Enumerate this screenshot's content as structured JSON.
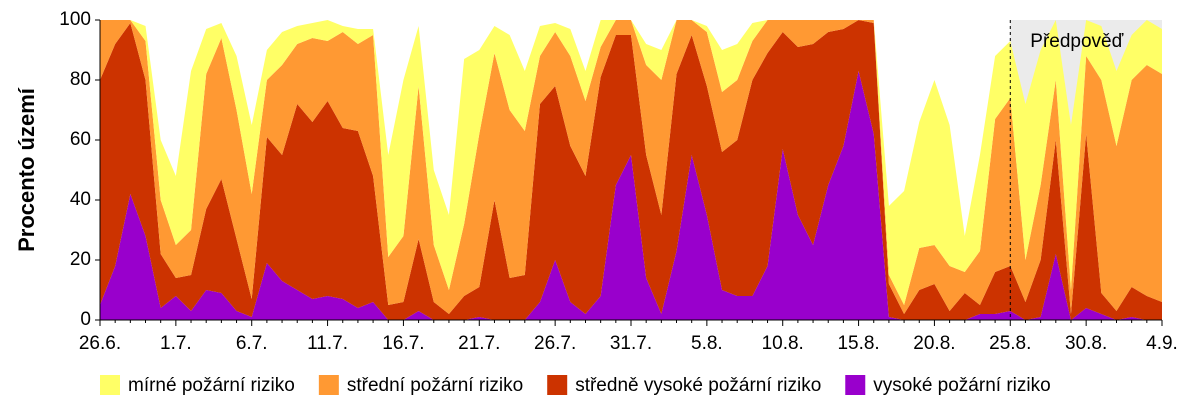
{
  "chart_data": {
    "type": "stacked_area",
    "y_label": "Procento území",
    "categories": [
      "26.6.",
      null,
      null,
      null,
      null,
      "1.7.",
      null,
      null,
      null,
      null,
      "6.7.",
      null,
      null,
      null,
      null,
      "11.7.",
      null,
      null,
      null,
      null,
      "16.7.",
      null,
      null,
      null,
      null,
      "21.7.",
      null,
      null,
      null,
      null,
      "26.7.",
      null,
      null,
      null,
      null,
      "31.7.",
      null,
      null,
      null,
      null,
      "5.8.",
      null,
      null,
      null,
      null,
      "10.8.",
      null,
      null,
      null,
      null,
      "15.8.",
      null,
      null,
      null,
      null,
      "20.8.",
      null,
      null,
      null,
      null,
      "25.8.",
      null,
      null,
      null,
      null,
      "30.8.",
      null,
      null,
      null,
      null,
      "4.9."
    ],
    "series": [
      {
        "name": "vysoké požární riziko",
        "color": "#9900cc",
        "values": [
          5,
          18,
          42,
          28,
          4,
          8,
          3,
          10,
          9,
          3,
          1,
          19,
          13,
          10,
          7,
          8,
          7,
          4,
          6,
          0,
          0,
          3,
          0,
          0,
          0,
          1,
          0,
          0,
          0,
          6,
          20,
          6,
          2,
          8,
          45,
          55,
          14,
          2,
          23,
          55,
          35,
          10,
          8,
          8,
          18,
          57,
          35,
          25,
          45,
          58,
          83,
          62,
          1,
          0,
          0,
          0,
          0,
          0,
          2,
          2,
          3,
          0,
          1,
          22,
          0,
          4,
          2,
          0,
          1,
          0,
          0
        ]
      },
      {
        "name": "středně vysoké požární riziko",
        "color": "#cc3300",
        "values": [
          75,
          74,
          57,
          52,
          18,
          6,
          12,
          27,
          38,
          24,
          6,
          42,
          42,
          62,
          59,
          65,
          57,
          59,
          42,
          5,
          6,
          24,
          6,
          2,
          8,
          10,
          40,
          14,
          15,
          66,
          58,
          52,
          46,
          73,
          50,
          40,
          41,
          33,
          59,
          40,
          43,
          46,
          52,
          72,
          71,
          39,
          56,
          67,
          51,
          39,
          17,
          37,
          11,
          2,
          10,
          12,
          3,
          9,
          3,
          14,
          15,
          6,
          19,
          38,
          2,
          58,
          7,
          3,
          10,
          8,
          6
        ]
      },
      {
        "name": "střední požární riziko",
        "color": "#ff9933",
        "values": [
          20,
          8,
          1,
          13,
          18,
          11,
          15,
          45,
          47,
          43,
          35,
          19,
          30,
          20,
          28,
          20,
          32,
          29,
          47,
          16,
          22,
          51,
          19,
          8,
          24,
          51,
          49,
          56,
          48,
          16,
          18,
          30,
          25,
          10,
          5,
          5,
          30,
          45,
          18,
          5,
          18,
          20,
          20,
          13,
          11,
          4,
          9,
          8,
          4,
          3,
          0,
          1,
          3,
          3,
          14,
          13,
          15,
          7,
          18,
          51,
          56,
          14,
          25,
          20,
          8,
          26,
          71,
          55,
          69,
          77,
          76
        ]
      },
      {
        "name": "mírné požární riziko",
        "color": "#ffff66",
        "values": [
          0,
          0,
          0,
          5,
          20,
          23,
          53,
          15,
          5,
          18,
          23,
          10,
          11,
          6,
          5,
          7,
          2,
          5,
          2,
          34,
          52,
          20,
          25,
          25,
          55,
          28,
          9,
          25,
          20,
          10,
          3,
          9,
          10,
          9,
          0,
          0,
          7,
          10,
          0,
          0,
          2,
          14,
          12,
          6,
          0,
          0,
          0,
          0,
          0,
          0,
          0,
          0,
          23,
          38,
          42,
          55,
          47,
          12,
          32,
          21,
          19,
          52,
          45,
          20,
          55,
          12,
          18,
          25,
          15,
          15,
          15
        ]
      }
    ],
    "ylim": [
      0,
      100
    ],
    "yticks": [
      0,
      20,
      40,
      60,
      80,
      100
    ],
    "annotation": {
      "text": "Předpověď",
      "category": "25.8.",
      "color": "#ebebeb"
    }
  }
}
